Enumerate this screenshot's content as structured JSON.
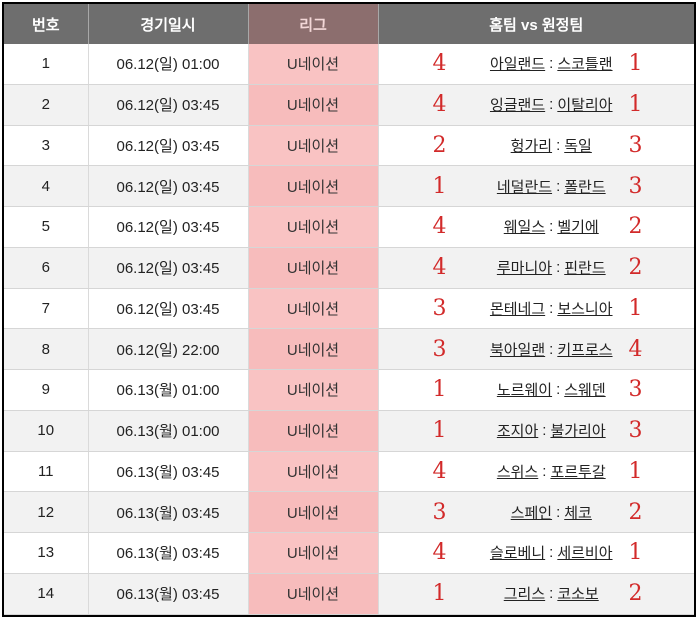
{
  "headers": {
    "no": "번호",
    "datetime": "경기일시",
    "league": "리그",
    "match": "홈팀 vs 원정팀"
  },
  "separator": ":",
  "rows": [
    {
      "no": "1",
      "datetime": "06.12(일) 01:00",
      "league": "U네이션",
      "home": "아일랜드",
      "away": "스코틀랜",
      "home_score": "4",
      "away_score": "1"
    },
    {
      "no": "2",
      "datetime": "06.12(일) 03:45",
      "league": "U네이션",
      "home": "잉글랜드",
      "away": "이탈리아",
      "home_score": "4",
      "away_score": "1"
    },
    {
      "no": "3",
      "datetime": "06.12(일) 03:45",
      "league": "U네이션",
      "home": "헝가리",
      "away": "독일",
      "home_score": "2",
      "away_score": "3"
    },
    {
      "no": "4",
      "datetime": "06.12(일) 03:45",
      "league": "U네이션",
      "home": "네덜란드",
      "away": "폴란드",
      "home_score": "1",
      "away_score": "3"
    },
    {
      "no": "5",
      "datetime": "06.12(일) 03:45",
      "league": "U네이션",
      "home": "웨일스",
      "away": "벨기에",
      "home_score": "4",
      "away_score": "2"
    },
    {
      "no": "6",
      "datetime": "06.12(일) 03:45",
      "league": "U네이션",
      "home": "루마니아",
      "away": "핀란드",
      "home_score": "4",
      "away_score": "2"
    },
    {
      "no": "7",
      "datetime": "06.12(일) 03:45",
      "league": "U네이션",
      "home": "몬테네그",
      "away": "보스니아",
      "home_score": "3",
      "away_score": "1"
    },
    {
      "no": "8",
      "datetime": "06.12(일) 22:00",
      "league": "U네이션",
      "home": "북아일랜",
      "away": "키프로스",
      "home_score": "3",
      "away_score": "4"
    },
    {
      "no": "9",
      "datetime": "06.13(월) 01:00",
      "league": "U네이션",
      "home": "노르웨이",
      "away": "스웨덴",
      "home_score": "1",
      "away_score": "3"
    },
    {
      "no": "10",
      "datetime": "06.13(월) 01:00",
      "league": "U네이션",
      "home": "조지아",
      "away": "불가리아",
      "home_score": "1",
      "away_score": "3"
    },
    {
      "no": "11",
      "datetime": "06.13(월) 03:45",
      "league": "U네이션",
      "home": "스위스",
      "away": "포르투갈",
      "home_score": "4",
      "away_score": "1"
    },
    {
      "no": "12",
      "datetime": "06.13(월) 03:45",
      "league": "U네이션",
      "home": "스페인",
      "away": "체코",
      "home_score": "3",
      "away_score": "2"
    },
    {
      "no": "13",
      "datetime": "06.13(월) 03:45",
      "league": "U네이션",
      "home": "슬로베니",
      "away": "세르비아",
      "home_score": "4",
      "away_score": "1"
    },
    {
      "no": "14",
      "datetime": "06.13(월) 03:45",
      "league": "U네이션",
      "home": "그리스",
      "away": "코소보",
      "home_score": "1",
      "away_score": "2"
    }
  ]
}
